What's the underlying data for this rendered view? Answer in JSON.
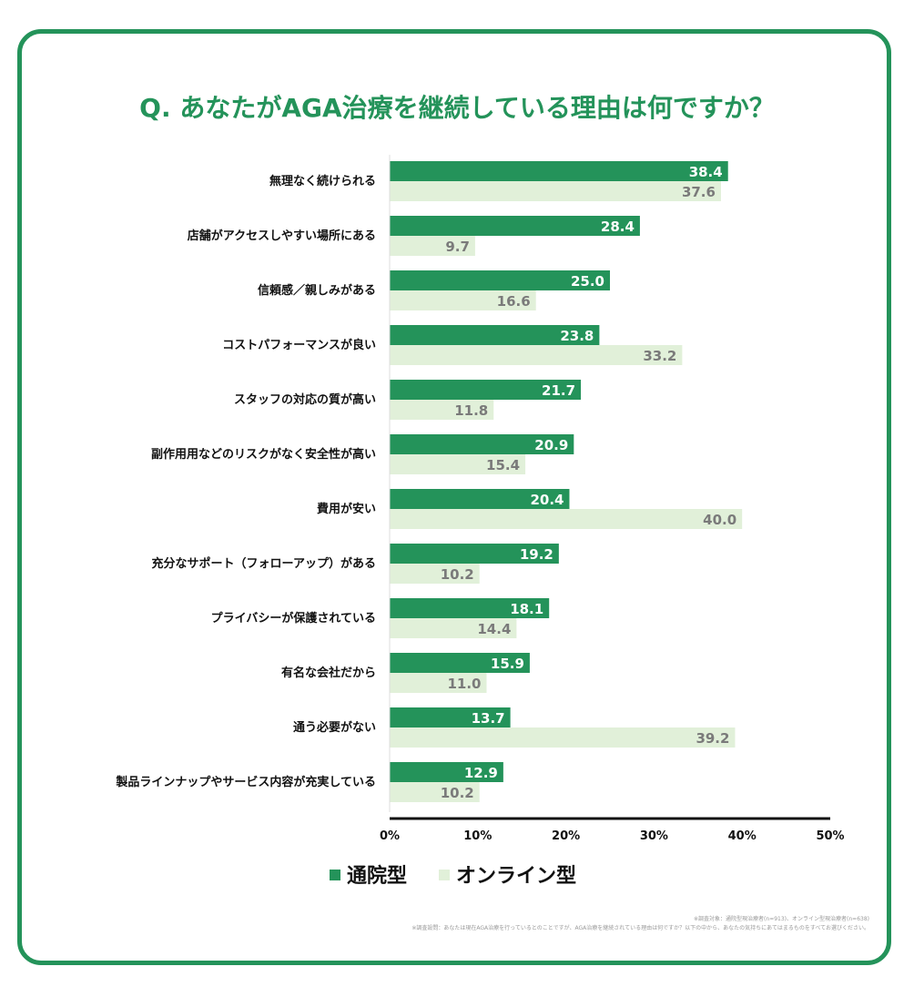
{
  "colors": {
    "accent": "#24935a",
    "series_a": "#24935a",
    "series_b": "#e1f0d9",
    "frame": "#24935a"
  },
  "chart_data": {
    "type": "bar",
    "orientation": "horizontal",
    "title": "Q. あなたがAGA治療を継続している理由は何ですか？",
    "categories": [
      "無理なく続けられる",
      "店舗がアクセスしやすい場所にある",
      "信頼感／親しみがある",
      "コストパフォーマンスが良い",
      "スタッフの対応の質が高い",
      "副作用用などのリスクがなく安全性が高い",
      "費用が安い",
      "充分なサポート（フォローアップ）がある",
      "プライバシーが保護されている",
      "有名な会社だから",
      "通う必要がない",
      "製品ラインナップやサービス内容が充実している"
    ],
    "series": [
      {
        "name": "通院型",
        "values": [
          38.4,
          28.4,
          25.0,
          23.8,
          21.7,
          20.9,
          20.4,
          19.2,
          18.1,
          15.9,
          13.7,
          12.9
        ],
        "labels": [
          "38.4",
          "28.4",
          "25.0",
          "23.8",
          "21.7",
          "20.9",
          "20.4",
          "19.2",
          "18.1",
          "15.9",
          "13.7",
          "12.9"
        ]
      },
      {
        "name": "オンライン型",
        "values": [
          37.6,
          9.7,
          16.6,
          33.2,
          11.8,
          15.4,
          40.0,
          10.2,
          14.4,
          11.0,
          39.2,
          10.2
        ],
        "labels": [
          "37.6",
          "9.7",
          "16.6",
          "33.2",
          "11.8",
          "15.4",
          "40.0",
          "10.2",
          "14.4",
          "11.0",
          "39.2",
          "10.2"
        ]
      }
    ],
    "xlim": [
      0,
      50
    ],
    "xticks": [
      "0%",
      "10%",
      "20%",
      "30%",
      "40%",
      "50%"
    ],
    "legend": "bottom-center",
    "notes": [
      "※調査対象：通院型現治療者(n=913)、オンライン型現治療者(n=638)",
      "※調査設問：あなたは現在AGA治療を行っているとのことですが、AGA治療を継続されている理由は何ですか？以下の中から、あなたの気持ちにあてはまるものをすべてお選びください。"
    ]
  }
}
